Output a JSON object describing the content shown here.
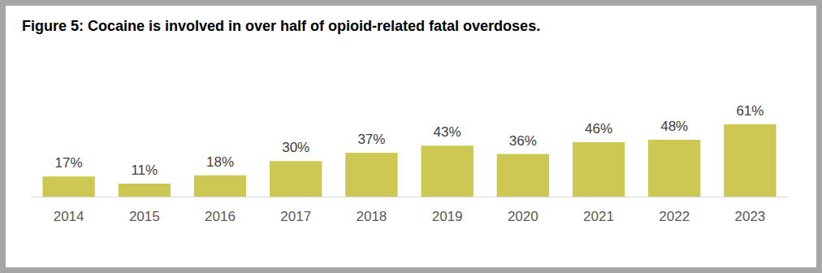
{
  "chart_data": {
    "type": "bar",
    "title": "Figure 5: Cocaine is involved in over half of opioid-related fatal overdoses.",
    "categories": [
      "2014",
      "2015",
      "2016",
      "2017",
      "2018",
      "2019",
      "2020",
      "2021",
      "2022",
      "2023"
    ],
    "values": [
      17,
      11,
      18,
      30,
      37,
      43,
      36,
      46,
      48,
      61
    ],
    "value_labels": [
      "17%",
      "11%",
      "18%",
      "30%",
      "37%",
      "43%",
      "36%",
      "46%",
      "48%",
      "61%"
    ],
    "color": "#cdc853",
    "ylim": [
      0,
      70
    ],
    "grid": false,
    "data_labels": true,
    "tick_labels": "x"
  }
}
